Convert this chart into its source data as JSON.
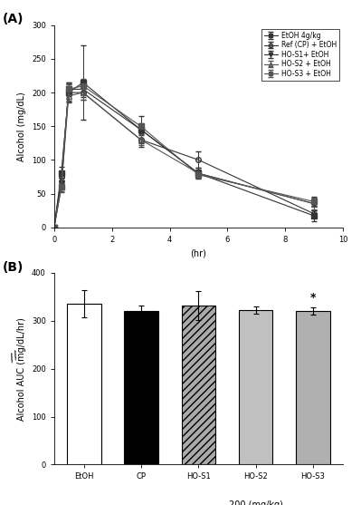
{
  "panel_A": {
    "title": "(A)",
    "xlabel": "(hr)",
    "ylabel": "Alcohol (mg/dL)",
    "ylim": [
      0,
      300
    ],
    "xlim": [
      0,
      10
    ],
    "xticks": [
      0,
      2,
      4,
      6,
      8,
      10
    ],
    "yticks": [
      0,
      50,
      100,
      150,
      200,
      250,
      300
    ],
    "time_points": [
      0,
      0.25,
      0.5,
      1.0,
      3.0,
      5.0,
      9.0
    ],
    "series": [
      {
        "label": "EtOH 4g/kg",
        "values": [
          0,
          80,
          200,
          215,
          145,
          80,
          17
        ],
        "errors": [
          0,
          10,
          15,
          55,
          8,
          8,
          8
        ],
        "marker": "s",
        "color": "#333333",
        "fillstyle": "full",
        "linestyle": "-"
      },
      {
        "label": "Ref (CP) + EtOH",
        "values": [
          0,
          75,
          200,
          200,
          130,
          100,
          20
        ],
        "errors": [
          0,
          8,
          12,
          10,
          10,
          12,
          5
        ],
        "marker": "o",
        "color": "#333333",
        "fillstyle": "none",
        "linestyle": "-"
      },
      {
        "label": "HO-S1+ EtOH",
        "values": [
          0,
          65,
          205,
          205,
          145,
          80,
          35
        ],
        "errors": [
          0,
          8,
          10,
          12,
          20,
          6,
          10
        ],
        "marker": "v",
        "color": "#333333",
        "fillstyle": "full",
        "linestyle": "-"
      },
      {
        "label": "HO-S2 + EtOH",
        "values": [
          0,
          60,
          195,
          200,
          130,
          80,
          35
        ],
        "errors": [
          0,
          8,
          8,
          10,
          8,
          5,
          8
        ],
        "marker": "^",
        "color": "#555555",
        "fillstyle": "none",
        "linestyle": "-"
      },
      {
        "label": "HO-S3 + EtOH",
        "values": [
          0,
          60,
          205,
          210,
          150,
          78,
          38
        ],
        "errors": [
          0,
          6,
          8,
          10,
          5,
          5,
          6
        ],
        "marker": "s",
        "color": "#555555",
        "fillstyle": "full",
        "linestyle": "-"
      }
    ]
  },
  "panel_B": {
    "title": "(B)",
    "xlabel": "",
    "ylabel": "Alcohol AUC (mg/dL/hr)",
    "ylim": [
      0,
      400
    ],
    "yticks": [
      0,
      100,
      200,
      300,
      400
    ],
    "categories": [
      "EtOH",
      "CP",
      "HO-S1",
      "HO-S2",
      "HO-S3"
    ],
    "values": [
      335,
      320,
      332,
      322,
      320
    ],
    "errors": [
      28,
      12,
      30,
      8,
      8
    ],
    "bar_colors": [
      "white",
      "black",
      "none",
      "#c0c0c0",
      "#b0b0b0"
    ],
    "bar_edgecolors": [
      "black",
      "black",
      "black",
      "black",
      "black"
    ],
    "hatch_patterns": [
      "",
      "",
      "////",
      "",
      ""
    ],
    "hatch_bar_fill": "#aaaaaa",
    "significance": [
      false,
      false,
      false,
      false,
      true
    ],
    "bracket_label": "200 (mg/kg)",
    "bracket_x_start": 2,
    "bracket_x_end": 4
  },
  "bg_color": "#ffffff",
  "font_size": 7,
  "tick_font_size": 6
}
